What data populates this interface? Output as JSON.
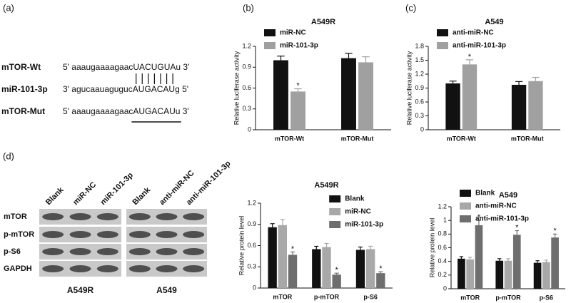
{
  "panel_labels": [
    "(a)",
    "(b)",
    "(c)",
    "(d)"
  ],
  "sequences": {
    "rows": [
      {
        "name": "mTOR-Wt",
        "prefix": "5' aaaugaaaagaac",
        "site": "UACUGUA",
        "suffix": "u 3'"
      },
      {
        "name": "miR-101-3p",
        "prefix": "3' agucaauaguguc",
        "site": "AUGACAU",
        "suffix": "g 5'"
      },
      {
        "name": "mTOR-Mut",
        "prefix": "5' aaaugaaaagaac",
        "site": "AUGACAU",
        "suffix": "u 3'"
      }
    ]
  },
  "western_blot": {
    "lanes": [
      [
        "Blank",
        "miR-NC",
        "miR-101-3p"
      ],
      [
        "Blank",
        "anti-miR-NC",
        "anti-miR-101-3p"
      ]
    ],
    "cell_lines": [
      "A549R",
      "A549"
    ],
    "proteins": [
      "mTOR",
      "p-mTOR",
      "p-S6",
      "GAPDH"
    ]
  },
  "chart_data": [
    {
      "type": "bar",
      "title": "A549R",
      "y_label": "Relative luciferase activity",
      "categories": [
        "mTOR-Wt",
        "mTOR-Mut"
      ],
      "series": [
        {
          "name": "miR-NC",
          "color": "#111111",
          "values": [
            1.0,
            1.03
          ],
          "errors": [
            0.06,
            0.07
          ],
          "annotations": [
            null,
            null
          ]
        },
        {
          "name": "miR-101-3p",
          "color": "#a0a0a0",
          "values": [
            0.55,
            0.97
          ],
          "errors": [
            0.04,
            0.08
          ],
          "annotations": [
            "*",
            null
          ]
        }
      ],
      "ylim": [
        0,
        1.2
      ],
      "yticks": [
        0,
        0.3,
        0.6,
        0.9,
        1.2
      ],
      "legend": "upper left"
    },
    {
      "type": "bar",
      "title": "A549",
      "y_label": "Relative luciferase activity",
      "categories": [
        "mTOR-Wt",
        "mTOR-Mut"
      ],
      "series": [
        {
          "name": "anti-miR-NC",
          "color": "#111111",
          "values": [
            1.0,
            0.97
          ],
          "errors": [
            0.05,
            0.07
          ],
          "annotations": [
            null,
            null
          ]
        },
        {
          "name": "anti-miR-101-3p",
          "color": "#a0a0a0",
          "values": [
            1.41,
            1.05
          ],
          "errors": [
            0.1,
            0.08
          ],
          "annotations": [
            "*",
            null
          ]
        }
      ],
      "ylim": [
        0,
        1.8
      ],
      "yticks": [
        0,
        0.3,
        0.6,
        0.9,
        1.2,
        1.5,
        1.8
      ],
      "legend": "upper left"
    },
    {
      "type": "bar",
      "title": "A549R",
      "y_label": "Relative protein level",
      "categories": [
        "mTOR",
        "p-mTOR",
        "p-S6"
      ],
      "series": [
        {
          "name": "Blank",
          "color": "#111111",
          "values": [
            0.86,
            0.55,
            0.54
          ],
          "errors": [
            0.05,
            0.04,
            0.04
          ],
          "annotations": [
            null,
            null,
            null
          ]
        },
        {
          "name": "miR-NC",
          "color": "#a8a8a8",
          "values": [
            0.89,
            0.58,
            0.55
          ],
          "errors": [
            0.08,
            0.05,
            0.04
          ],
          "annotations": [
            null,
            null,
            null
          ]
        },
        {
          "name": "miR-101-3p",
          "color": "#6e6e6e",
          "values": [
            0.47,
            0.19,
            0.21
          ],
          "errors": [
            0.04,
            0.02,
            0.02
          ],
          "annotations": [
            "*",
            "*",
            "*"
          ]
        }
      ],
      "ylim": [
        0,
        1.2
      ],
      "yticks": [
        0,
        0.3,
        0.6,
        0.9,
        1.2
      ],
      "legend": "upper right"
    },
    {
      "type": "bar",
      "title": "A549",
      "y_label": "Relative protein level",
      "categories": [
        "mTOR",
        "p-mTOR",
        "p-S6"
      ],
      "series": [
        {
          "name": "Blank",
          "color": "#111111",
          "values": [
            0.44,
            0.41,
            0.38
          ],
          "errors": [
            0.03,
            0.03,
            0.03
          ],
          "annotations": [
            null,
            null,
            null
          ]
        },
        {
          "name": "anti-miR-NC",
          "color": "#a8a8a8",
          "values": [
            0.43,
            0.41,
            0.39
          ],
          "errors": [
            0.03,
            0.03,
            0.03
          ],
          "annotations": [
            null,
            null,
            null
          ]
        },
        {
          "name": "anti-miR-101-3p",
          "color": "#6e6e6e",
          "values": [
            0.93,
            0.79,
            0.75
          ],
          "errors": [
            0.07,
            0.06,
            0.05
          ],
          "annotations": [
            "*",
            "*",
            "*"
          ]
        }
      ],
      "ylim": [
        0,
        1.2
      ],
      "yticks": [
        0,
        0.2,
        0.4,
        0.6,
        0.8,
        1.0,
        1.2
      ],
      "legend": "upper left"
    }
  ]
}
